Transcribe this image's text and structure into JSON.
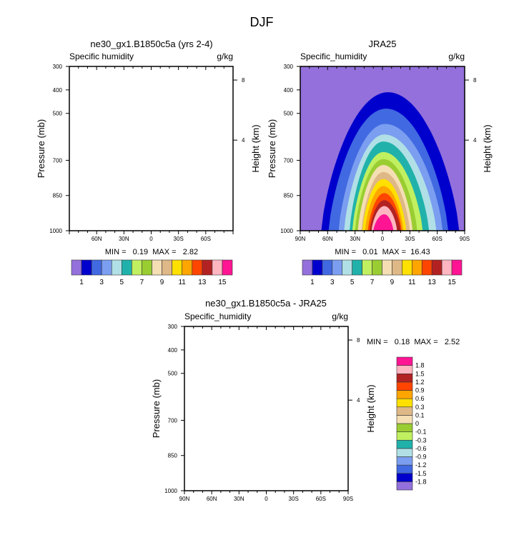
{
  "main_title": "DJF",
  "chart_data": [
    {
      "type": "contour",
      "title": "ne30_gx1.B1850c5a (yrs 2-4)",
      "left_string": "Specific humidity",
      "right_string": "g/kg",
      "ylabel": "Pressure (mb)",
      "ylabel_right": "Height (km)",
      "x_ticks": [
        "60N",
        "30N",
        "0",
        "30S",
        "60S"
      ],
      "y_ticks": [
        "300",
        "400",
        "500",
        "700",
        "850",
        "1000"
      ],
      "y_tick_values": [
        300,
        400,
        500,
        700,
        850,
        1000
      ],
      "height_ticks": [
        "8",
        "4"
      ],
      "height_tick_values_mb": [
        358,
        614
      ],
      "xlim": [
        90,
        -90
      ],
      "ylim": [
        1000,
        300
      ],
      "min_max": "MIN =   0.19  MAX =   2.82",
      "colorbar": {
        "orientation": "horizontal",
        "labels": [
          "1",
          "3",
          "5",
          "7",
          "9",
          "11",
          "13",
          "15"
        ]
      },
      "filled": false
    },
    {
      "type": "contour",
      "title": "JRA25",
      "left_string": "Specific_humidity",
      "right_string": "g/kg",
      "ylabel": "Pressure (mb)",
      "ylabel_right": "Height (km)",
      "x_ticks": [
        "90N",
        "60N",
        "30N",
        "0",
        "30S",
        "60S",
        "90S"
      ],
      "y_ticks": [
        "300",
        "400",
        "500",
        "700",
        "850",
        "1000"
      ],
      "y_tick_values": [
        300,
        400,
        500,
        700,
        850,
        1000
      ],
      "height_ticks": [
        "8",
        "4"
      ],
      "height_tick_values_mb": [
        358,
        614
      ],
      "xlim": [
        90,
        -90
      ],
      "ylim": [
        1000,
        300
      ],
      "min_max": "MIN =   0.01  MAX =  16.43",
      "colorbar": {
        "orientation": "horizontal",
        "labels": [
          "1",
          "3",
          "5",
          "7",
          "9",
          "11",
          "13",
          "15"
        ]
      },
      "filled": true,
      "contour_levels": [
        1,
        2,
        3,
        4,
        5,
        6,
        7,
        8,
        9,
        10,
        11,
        12,
        13,
        14,
        15
      ],
      "contour_extent_comment": "per level: [northern lat at 1000mb, southern lat at 1000mb (negative=S), top pressure mb, lat of top]",
      "contour_extent": [
        [
          67,
          -84,
          410,
          -6
        ],
        [
          59,
          -72,
          480,
          -4
        ],
        [
          48,
          -66,
          545,
          -3
        ],
        [
          42,
          -59,
          590,
          -2
        ],
        [
          36,
          -51,
          620,
          -1
        ],
        [
          33,
          -44,
          665,
          -1
        ],
        [
          30,
          -38,
          695,
          -1
        ],
        [
          27,
          -33,
          720,
          -1
        ],
        [
          23,
          -30,
          750,
          -1
        ],
        [
          22,
          -26,
          780,
          -1
        ],
        [
          19,
          -23,
          810,
          -1
        ],
        [
          16,
          -21,
          840,
          -2
        ],
        [
          14,
          -20,
          870,
          -2
        ],
        [
          12,
          -16,
          895,
          -2
        ],
        [
          10,
          -12,
          930,
          -2
        ]
      ]
    },
    {
      "type": "contour",
      "title": "ne30_gx1.B1850c5a - JRA25",
      "left_string": "Specific_humidity",
      "right_string": "g/kg",
      "ylabel": "Pressure (mb)",
      "ylabel_right": "Height (km)",
      "x_ticks": [
        "90N",
        "60N",
        "30N",
        "0",
        "30S",
        "60S",
        "90S"
      ],
      "y_ticks": [
        "300",
        "400",
        "500",
        "700",
        "850",
        "1000"
      ],
      "y_tick_values": [
        300,
        400,
        500,
        700,
        850,
        1000
      ],
      "height_ticks": [
        "8",
        "4"
      ],
      "height_tick_values_mb": [
        358,
        614
      ],
      "xlim": [
        90,
        -90
      ],
      "ylim": [
        1000,
        300
      ],
      "min_max": "MIN =   0.18  MAX =   2.52",
      "colorbar": {
        "orientation": "vertical",
        "labels": [
          "-1.8",
          "-1.5",
          "-1.2",
          "-0.9",
          "-0.6",
          "-0.3",
          "-0.1",
          "0",
          "0.1",
          "0.3",
          "0.6",
          "0.9",
          "1.2",
          "1.5",
          "1.8"
        ]
      },
      "filled": false
    }
  ],
  "colors": [
    "#9370DB",
    "#0000CD",
    "#4169E1",
    "#7B9EF0",
    "#B0E0E6",
    "#20B2AA",
    "#C0F060",
    "#9ACD32",
    "#F5DEB3",
    "#DEB887",
    "#FFE000",
    "#FFA500",
    "#FF4500",
    "#B22222",
    "#FFB6C1",
    "#FF1493"
  ]
}
